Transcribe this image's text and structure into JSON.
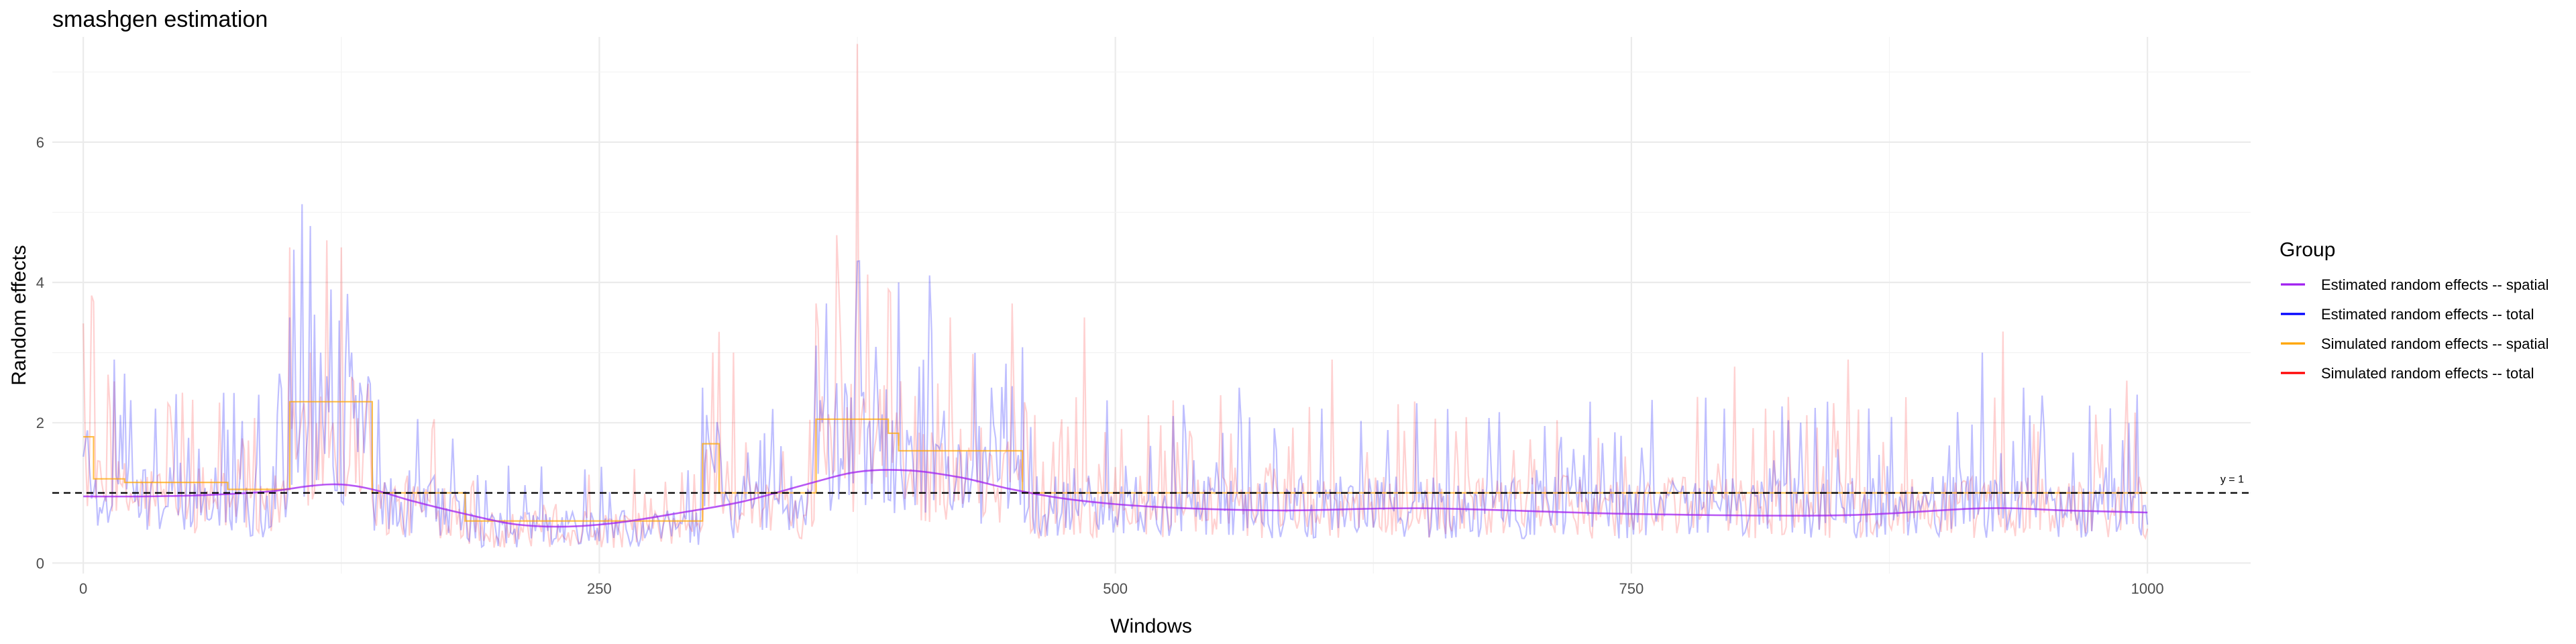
{
  "chart_data": {
    "type": "line",
    "title": "smashgen estimation",
    "xlabel": "Windows",
    "ylabel": "Random effects",
    "xlim": [
      -15,
      1050
    ],
    "ylim": [
      -0.15,
      7.5
    ],
    "x_ticks": [
      0,
      250,
      500,
      750,
      1000
    ],
    "y_ticks": [
      0,
      2,
      4,
      6
    ],
    "grid": true,
    "legend": {
      "title": "Group",
      "placement": "right",
      "entries": [
        {
          "label": "Estimated random effects -- spatial",
          "color": "#a020f0"
        },
        {
          "label": "Estimated random effects -- total",
          "color": "#0000ff"
        },
        {
          "label": "Simulated random effects -- spatial",
          "color": "#ffa500"
        },
        {
          "label": "Simulated random effects -- total",
          "color": "#ff0000"
        }
      ]
    },
    "reference_line": {
      "y": 1,
      "label": "y = 1",
      "style": "dashed"
    },
    "series": [
      {
        "name": "Simulated random effects -- spatial",
        "color": "#ffa500",
        "shape": "step",
        "segments": [
          {
            "x0": 0,
            "x1": 5,
            "y": 1.8
          },
          {
            "x0": 5,
            "x1": 20,
            "y": 1.2
          },
          {
            "x0": 20,
            "x1": 70,
            "y": 1.15
          },
          {
            "x0": 70,
            "x1": 100,
            "y": 1.05
          },
          {
            "x0": 100,
            "x1": 140,
            "y": 2.3
          },
          {
            "x0": 140,
            "x1": 185,
            "y": 1.0
          },
          {
            "x0": 185,
            "x1": 300,
            "y": 0.6
          },
          {
            "x0": 300,
            "x1": 308,
            "y": 1.7
          },
          {
            "x0": 308,
            "x1": 355,
            "y": 1.0
          },
          {
            "x0": 355,
            "x1": 390,
            "y": 2.05
          },
          {
            "x0": 390,
            "x1": 395,
            "y": 1.85
          },
          {
            "x0": 395,
            "x1": 455,
            "y": 1.6
          },
          {
            "x0": 455,
            "x1": 1000,
            "y": 1.0
          }
        ]
      },
      {
        "name": "Estimated random effects -- spatial",
        "color": "#a020f0",
        "shape": "smooth",
        "x": [
          0,
          30,
          60,
          90,
          110,
          125,
          140,
          160,
          185,
          210,
          235,
          260,
          290,
          320,
          350,
          375,
          400,
          425,
          450,
          480,
          520,
          580,
          650,
          750,
          850,
          920,
          960,
          1000
        ],
        "y": [
          0.95,
          0.95,
          0.97,
          1.02,
          1.1,
          1.12,
          1.05,
          0.88,
          0.7,
          0.55,
          0.52,
          0.58,
          0.72,
          0.88,
          1.12,
          1.3,
          1.32,
          1.22,
          1.05,
          0.9,
          0.8,
          0.75,
          0.78,
          0.7,
          0.68,
          0.78,
          0.75,
          0.72
        ]
      },
      {
        "name": "Estimated random effects -- total",
        "color": "#0000ff",
        "shape": "noisy",
        "baseline_series": "Simulated random effects -- spatial",
        "n_points": 1001,
        "peaks": [
          {
            "x": 15,
            "y": 2.9
          },
          {
            "x": 20,
            "y": 2.7
          },
          {
            "x": 35,
            "y": 2.2
          },
          {
            "x": 95,
            "y": 2.7
          },
          {
            "x": 100,
            "y": 3.5
          },
          {
            "x": 115,
            "y": 3.0
          },
          {
            "x": 120,
            "y": 3.9
          },
          {
            "x": 130,
            "y": 3.0
          },
          {
            "x": 300,
            "y": 2.5
          },
          {
            "x": 355,
            "y": 3.1
          },
          {
            "x": 360,
            "y": 3.7
          },
          {
            "x": 375,
            "y": 4.3
          },
          {
            "x": 395,
            "y": 4.0
          },
          {
            "x": 405,
            "y": 2.8
          },
          {
            "x": 410,
            "y": 4.1
          },
          {
            "x": 440,
            "y": 2.5
          },
          {
            "x": 560,
            "y": 2.5
          },
          {
            "x": 600,
            "y": 2.2
          },
          {
            "x": 730,
            "y": 2.3
          },
          {
            "x": 795,
            "y": 2.2
          },
          {
            "x": 845,
            "y": 2.3
          },
          {
            "x": 920,
            "y": 3.0
          },
          {
            "x": 940,
            "y": 2.5
          },
          {
            "x": 995,
            "y": 2.4
          }
        ]
      },
      {
        "name": "Simulated random effects -- total",
        "color": "#ff0000",
        "shape": "noisy",
        "baseline_series": "Simulated random effects -- spatial",
        "n_points": 1001,
        "peaks": [
          {
            "x": 100,
            "y": 4.5
          },
          {
            "x": 110,
            "y": 3.0
          },
          {
            "x": 118,
            "y": 4.6
          },
          {
            "x": 125,
            "y": 4.5
          },
          {
            "x": 305,
            "y": 3.0
          },
          {
            "x": 315,
            "y": 3.0
          },
          {
            "x": 355,
            "y": 3.7
          },
          {
            "x": 375,
            "y": 7.4
          },
          {
            "x": 390,
            "y": 3.9
          },
          {
            "x": 420,
            "y": 3.5
          },
          {
            "x": 450,
            "y": 3.7
          },
          {
            "x": 485,
            "y": 3.5
          },
          {
            "x": 605,
            "y": 2.9
          },
          {
            "x": 800,
            "y": 2.8
          },
          {
            "x": 855,
            "y": 2.9
          },
          {
            "x": 930,
            "y": 3.3
          },
          {
            "x": 990,
            "y": 2.6
          }
        ]
      }
    ]
  }
}
